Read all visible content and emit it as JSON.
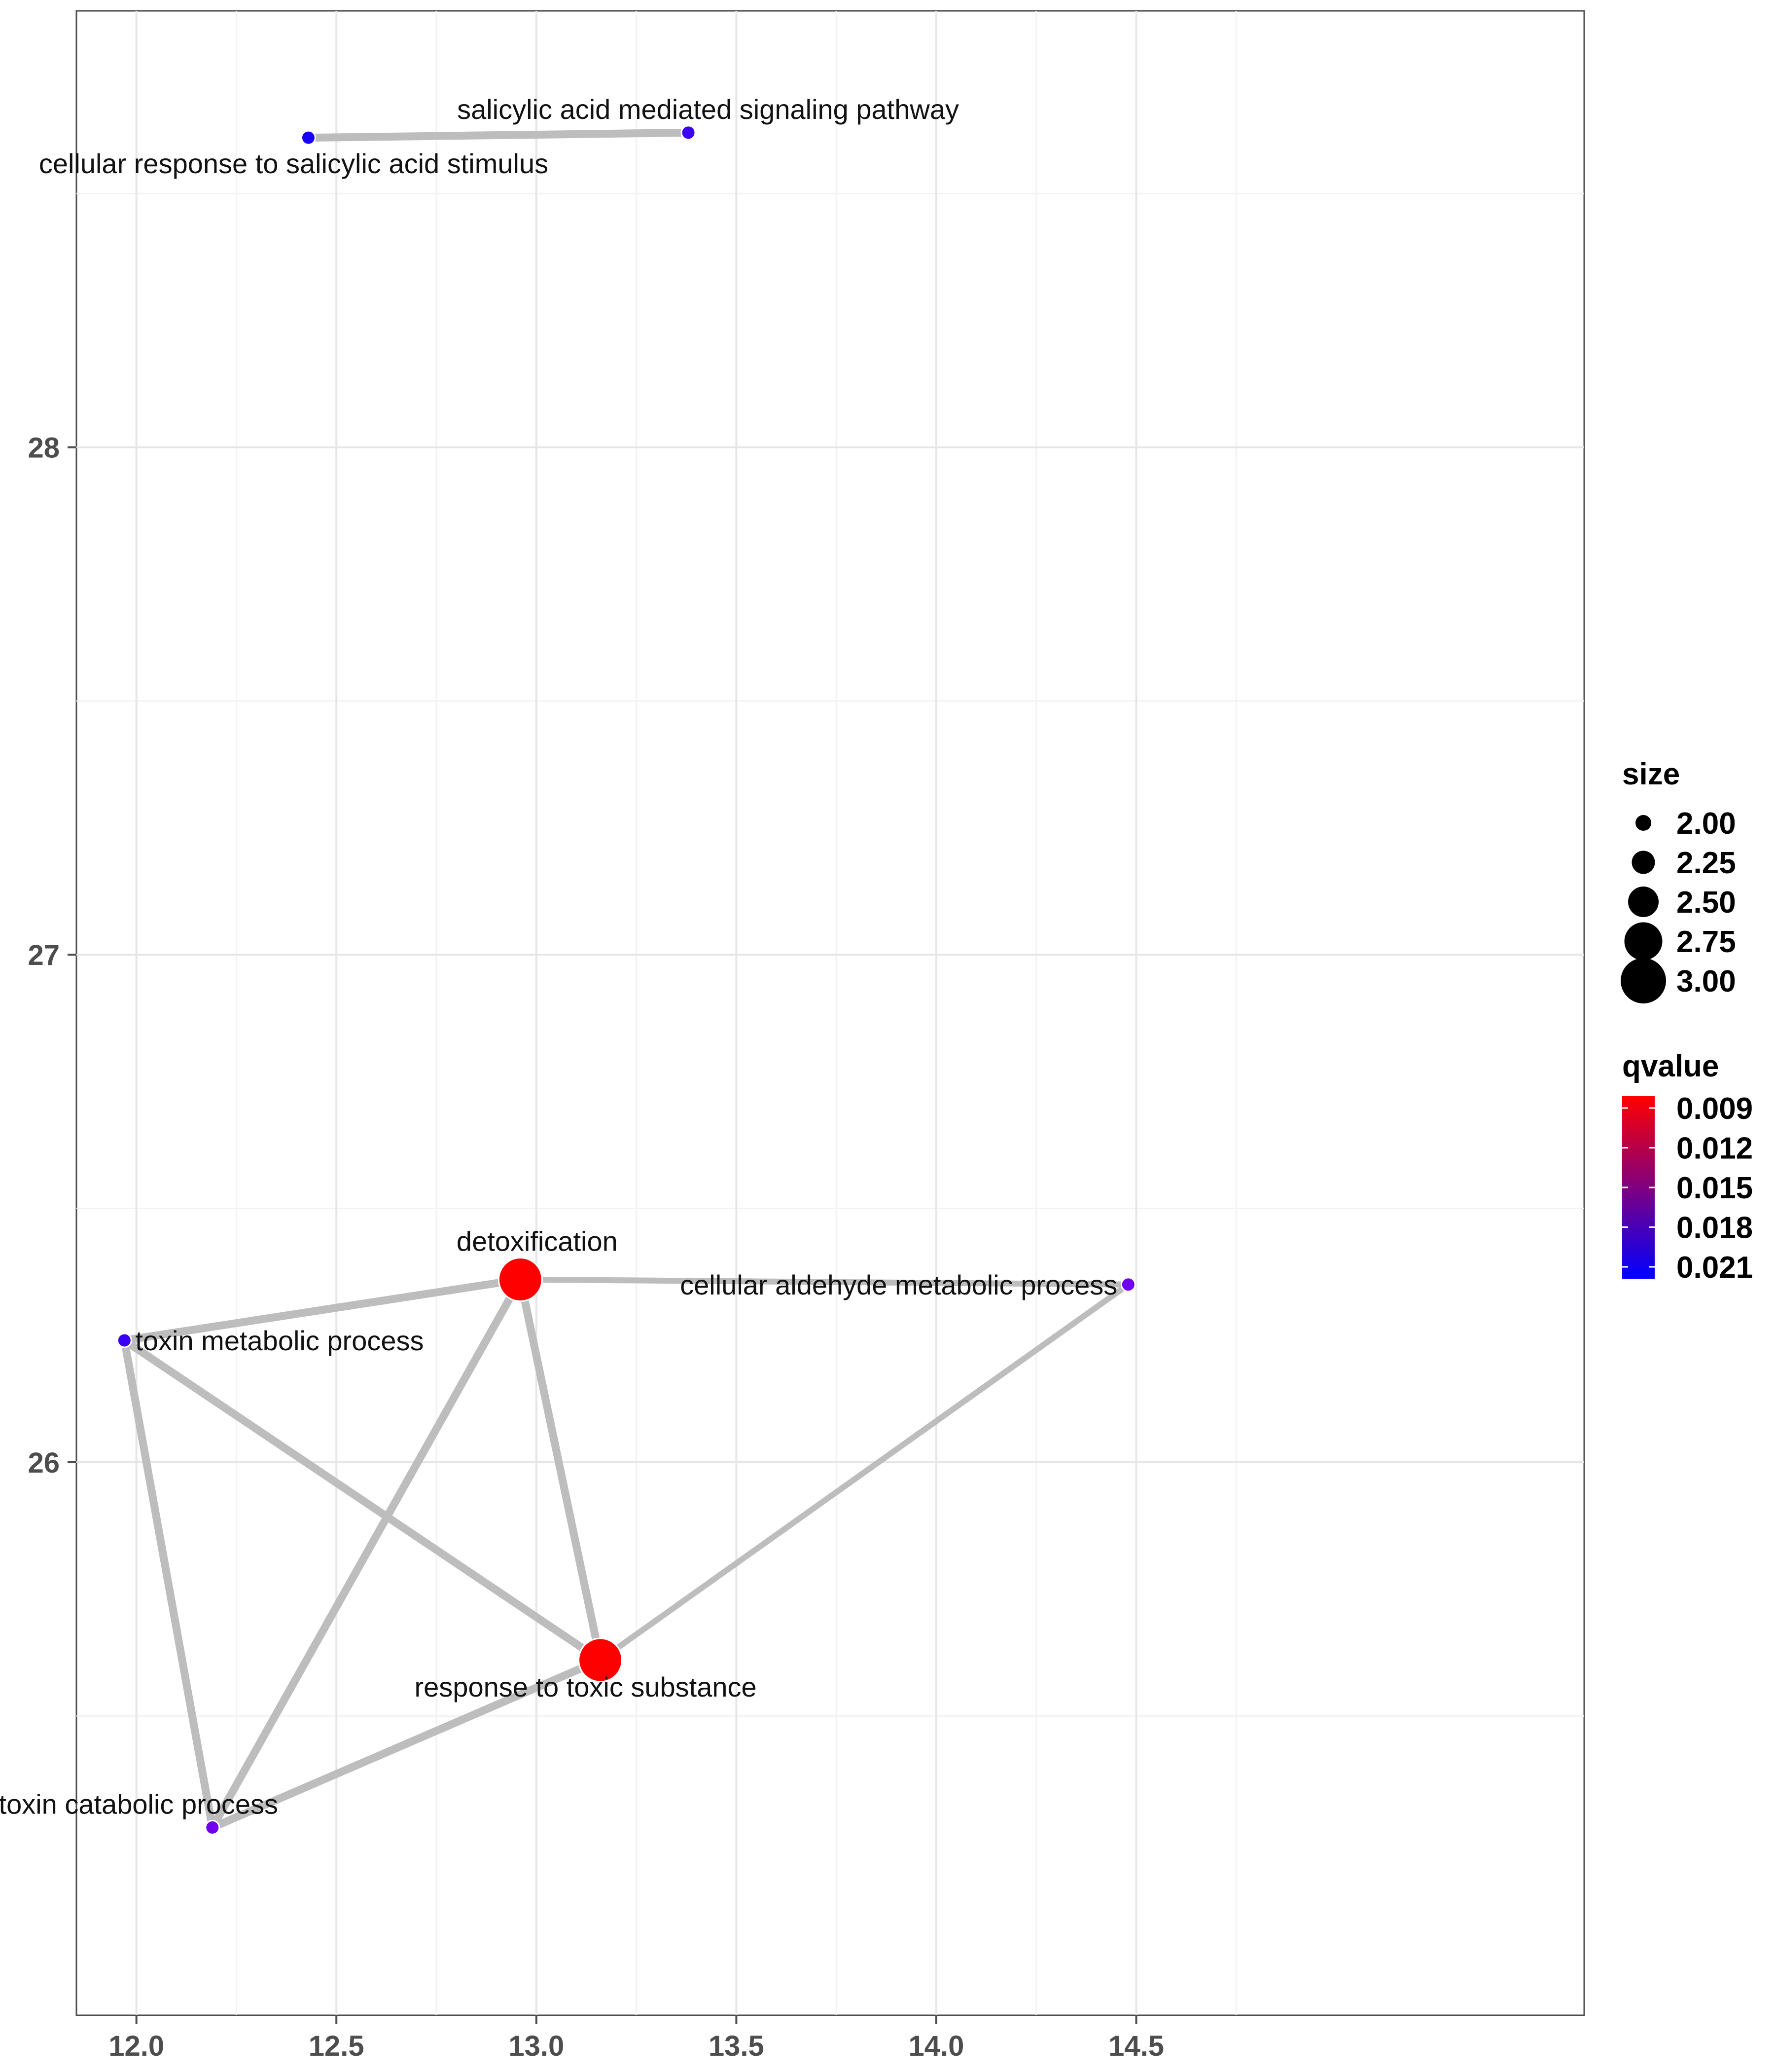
{
  "chart_data": {
    "type": "network",
    "title": "",
    "xlabel": "",
    "ylabel": "",
    "xlim": [
      11.85,
      15.62
    ],
    "ylim": [
      24.91,
      28.86
    ],
    "x_ticks": [
      12.0,
      12.5,
      13.0,
      13.5,
      14.0,
      14.5
    ],
    "x_tick_labels": [
      "12.0",
      "12.5",
      "13.0",
      "13.5",
      "14.0",
      "14.5"
    ],
    "y_ticks": [
      26,
      27,
      28
    ],
    "y_tick_labels": [
      "26",
      "27",
      "28"
    ],
    "grid": true,
    "legend_position": "right",
    "nodes": [
      {
        "id": "sa-pathway",
        "label": "salicylic acid mediated signaling pathway",
        "x": 13.38,
        "y": 28.62,
        "size": 2.0,
        "qvalue": 0.0205,
        "color": "#3a00f5",
        "label_anchor": "above"
      },
      {
        "id": "sa-stimulus",
        "label": "cellular response to salicylic acid stimulus",
        "x": 12.43,
        "y": 28.61,
        "size": 2.0,
        "qvalue": 0.021,
        "color": "#1800f8",
        "label_anchor": "below"
      },
      {
        "id": "detox",
        "label": "detoxification",
        "x": 12.96,
        "y": 26.36,
        "size": 3.0,
        "qvalue": 0.009,
        "color": "#ff0000",
        "label_anchor": "above"
      },
      {
        "id": "aldehyde",
        "label": "cellular aldehyde metabolic process",
        "x": 14.48,
        "y": 26.35,
        "size": 2.0,
        "qvalue": 0.019,
        "color": "#7000ee",
        "label_anchor": "left"
      },
      {
        "id": "toxin-metabolic",
        "label": "toxin metabolic process",
        "x": 11.97,
        "y": 26.24,
        "size": 2.0,
        "qvalue": 0.0205,
        "color": "#3a00f5",
        "label_anchor": "right"
      },
      {
        "id": "toxic-substance",
        "label": "response to toxic substance",
        "x": 13.16,
        "y": 25.61,
        "size": 3.0,
        "qvalue": 0.009,
        "color": "#ff0000",
        "label_anchor": "below"
      },
      {
        "id": "toxin-catabolic",
        "label": "toxin catabolic process",
        "x": 12.19,
        "y": 25.28,
        "size": 2.0,
        "qvalue": 0.019,
        "color": "#7000ee",
        "label_anchor": "above"
      }
    ],
    "edges": [
      {
        "source": "sa-stimulus",
        "target": "sa-pathway",
        "weight": 1.0
      },
      {
        "source": "toxin-metabolic",
        "target": "detox",
        "weight": 1.0
      },
      {
        "source": "detox",
        "target": "toxic-substance",
        "weight": 1.0
      },
      {
        "source": "detox",
        "target": "toxin-catabolic",
        "weight": 1.0
      },
      {
        "source": "detox",
        "target": "aldehyde",
        "weight": 0.5
      },
      {
        "source": "toxin-metabolic",
        "target": "toxic-substance",
        "weight": 1.0
      },
      {
        "source": "toxin-metabolic",
        "target": "toxin-catabolic",
        "weight": 1.0
      },
      {
        "source": "toxin-catabolic",
        "target": "toxic-substance",
        "weight": 1.0
      },
      {
        "source": "toxic-substance",
        "target": "aldehyde",
        "weight": 0.5
      }
    ],
    "edge_color": "#bdbdbd",
    "legend": {
      "size": {
        "title": "size",
        "values": [
          2.0,
          2.25,
          2.5,
          2.75,
          3.0
        ],
        "labels": [
          "2.00",
          "2.25",
          "2.50",
          "2.75",
          "3.00"
        ]
      },
      "qvalue": {
        "title": "qvalue",
        "labels": [
          "0.009",
          "0.012",
          "0.015",
          "0.018",
          "0.021"
        ],
        "low_color": "#ff0000",
        "high_color": "#0000ff"
      }
    }
  }
}
